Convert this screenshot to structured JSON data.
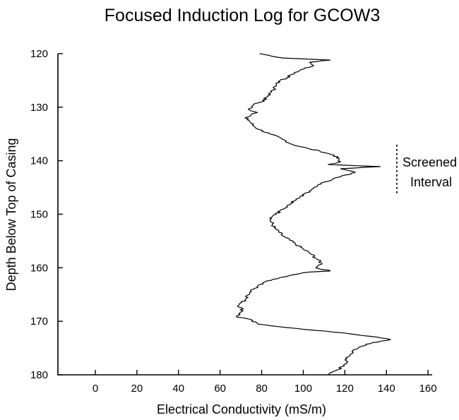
{
  "chart_data": {
    "type": "line",
    "title": "Focused Induction Log for GCOW3",
    "xlabel": "Electrical Conductivity (mS/m)",
    "ylabel": "Depth Below Top of Casing",
    "xlim": [
      -18,
      162
    ],
    "ylim": [
      120,
      180
    ],
    "y_inverted": true,
    "x_ticks": [
      0,
      20,
      40,
      60,
      80,
      100,
      120,
      140,
      160
    ],
    "y_ticks": [
      120,
      130,
      140,
      150,
      160,
      170,
      180
    ],
    "grid": false,
    "series": [
      {
        "name": "",
        "color": "#000000",
        "points": [
          [
            79,
            120
          ],
          [
            90,
            120.8
          ],
          [
            113,
            121.2
          ],
          [
            103,
            121.6
          ],
          [
            105,
            122.2
          ],
          [
            98,
            123.2
          ],
          [
            92,
            124.5
          ],
          [
            88,
            125.2
          ],
          [
            86,
            126.5
          ],
          [
            83,
            128
          ],
          [
            80,
            129
          ],
          [
            76,
            129.5
          ],
          [
            74,
            130.5
          ],
          [
            78,
            131
          ],
          [
            72,
            132
          ],
          [
            74,
            132.5
          ],
          [
            76,
            133.5
          ],
          [
            79,
            134.2
          ],
          [
            84,
            135
          ],
          [
            90,
            136
          ],
          [
            95,
            137
          ],
          [
            103,
            137.8
          ],
          [
            108,
            138.2
          ],
          [
            115,
            139
          ],
          [
            118,
            140.2
          ],
          [
            112,
            140.7
          ],
          [
            137,
            141.1
          ],
          [
            118,
            141.5
          ],
          [
            125,
            142.2
          ],
          [
            118,
            143
          ],
          [
            110,
            144
          ],
          [
            104,
            145.5
          ],
          [
            98,
            147
          ],
          [
            92,
            148.5
          ],
          [
            87,
            150
          ],
          [
            84,
            151
          ],
          [
            86,
            152.5
          ],
          [
            90,
            154
          ],
          [
            96,
            155.5
          ],
          [
            100,
            156.5
          ],
          [
            104,
            157.5
          ],
          [
            107,
            158.5
          ],
          [
            109,
            159.3
          ],
          [
            106,
            160
          ],
          [
            113,
            160.6
          ],
          [
            103,
            160.8
          ],
          [
            93,
            161.5
          ],
          [
            82,
            162.5
          ],
          [
            76,
            164
          ],
          [
            72,
            166
          ],
          [
            69,
            167
          ],
          [
            71,
            168
          ],
          [
            68,
            169.2
          ],
          [
            73,
            169.5
          ],
          [
            78,
            170.5
          ],
          [
            100,
            171.5
          ],
          [
            120,
            172.2
          ],
          [
            132,
            172.8
          ],
          [
            142,
            173.4
          ],
          [
            130,
            174.3
          ],
          [
            124,
            175.5
          ],
          [
            121,
            177
          ],
          [
            120,
            178
          ],
          [
            117,
            179
          ],
          [
            112,
            180
          ]
        ]
      }
    ],
    "annotations": [
      {
        "text_lines": [
          "Screened",
          "Interval"
        ],
        "x": 145,
        "depth_range": [
          137,
          146.5
        ]
      }
    ]
  }
}
